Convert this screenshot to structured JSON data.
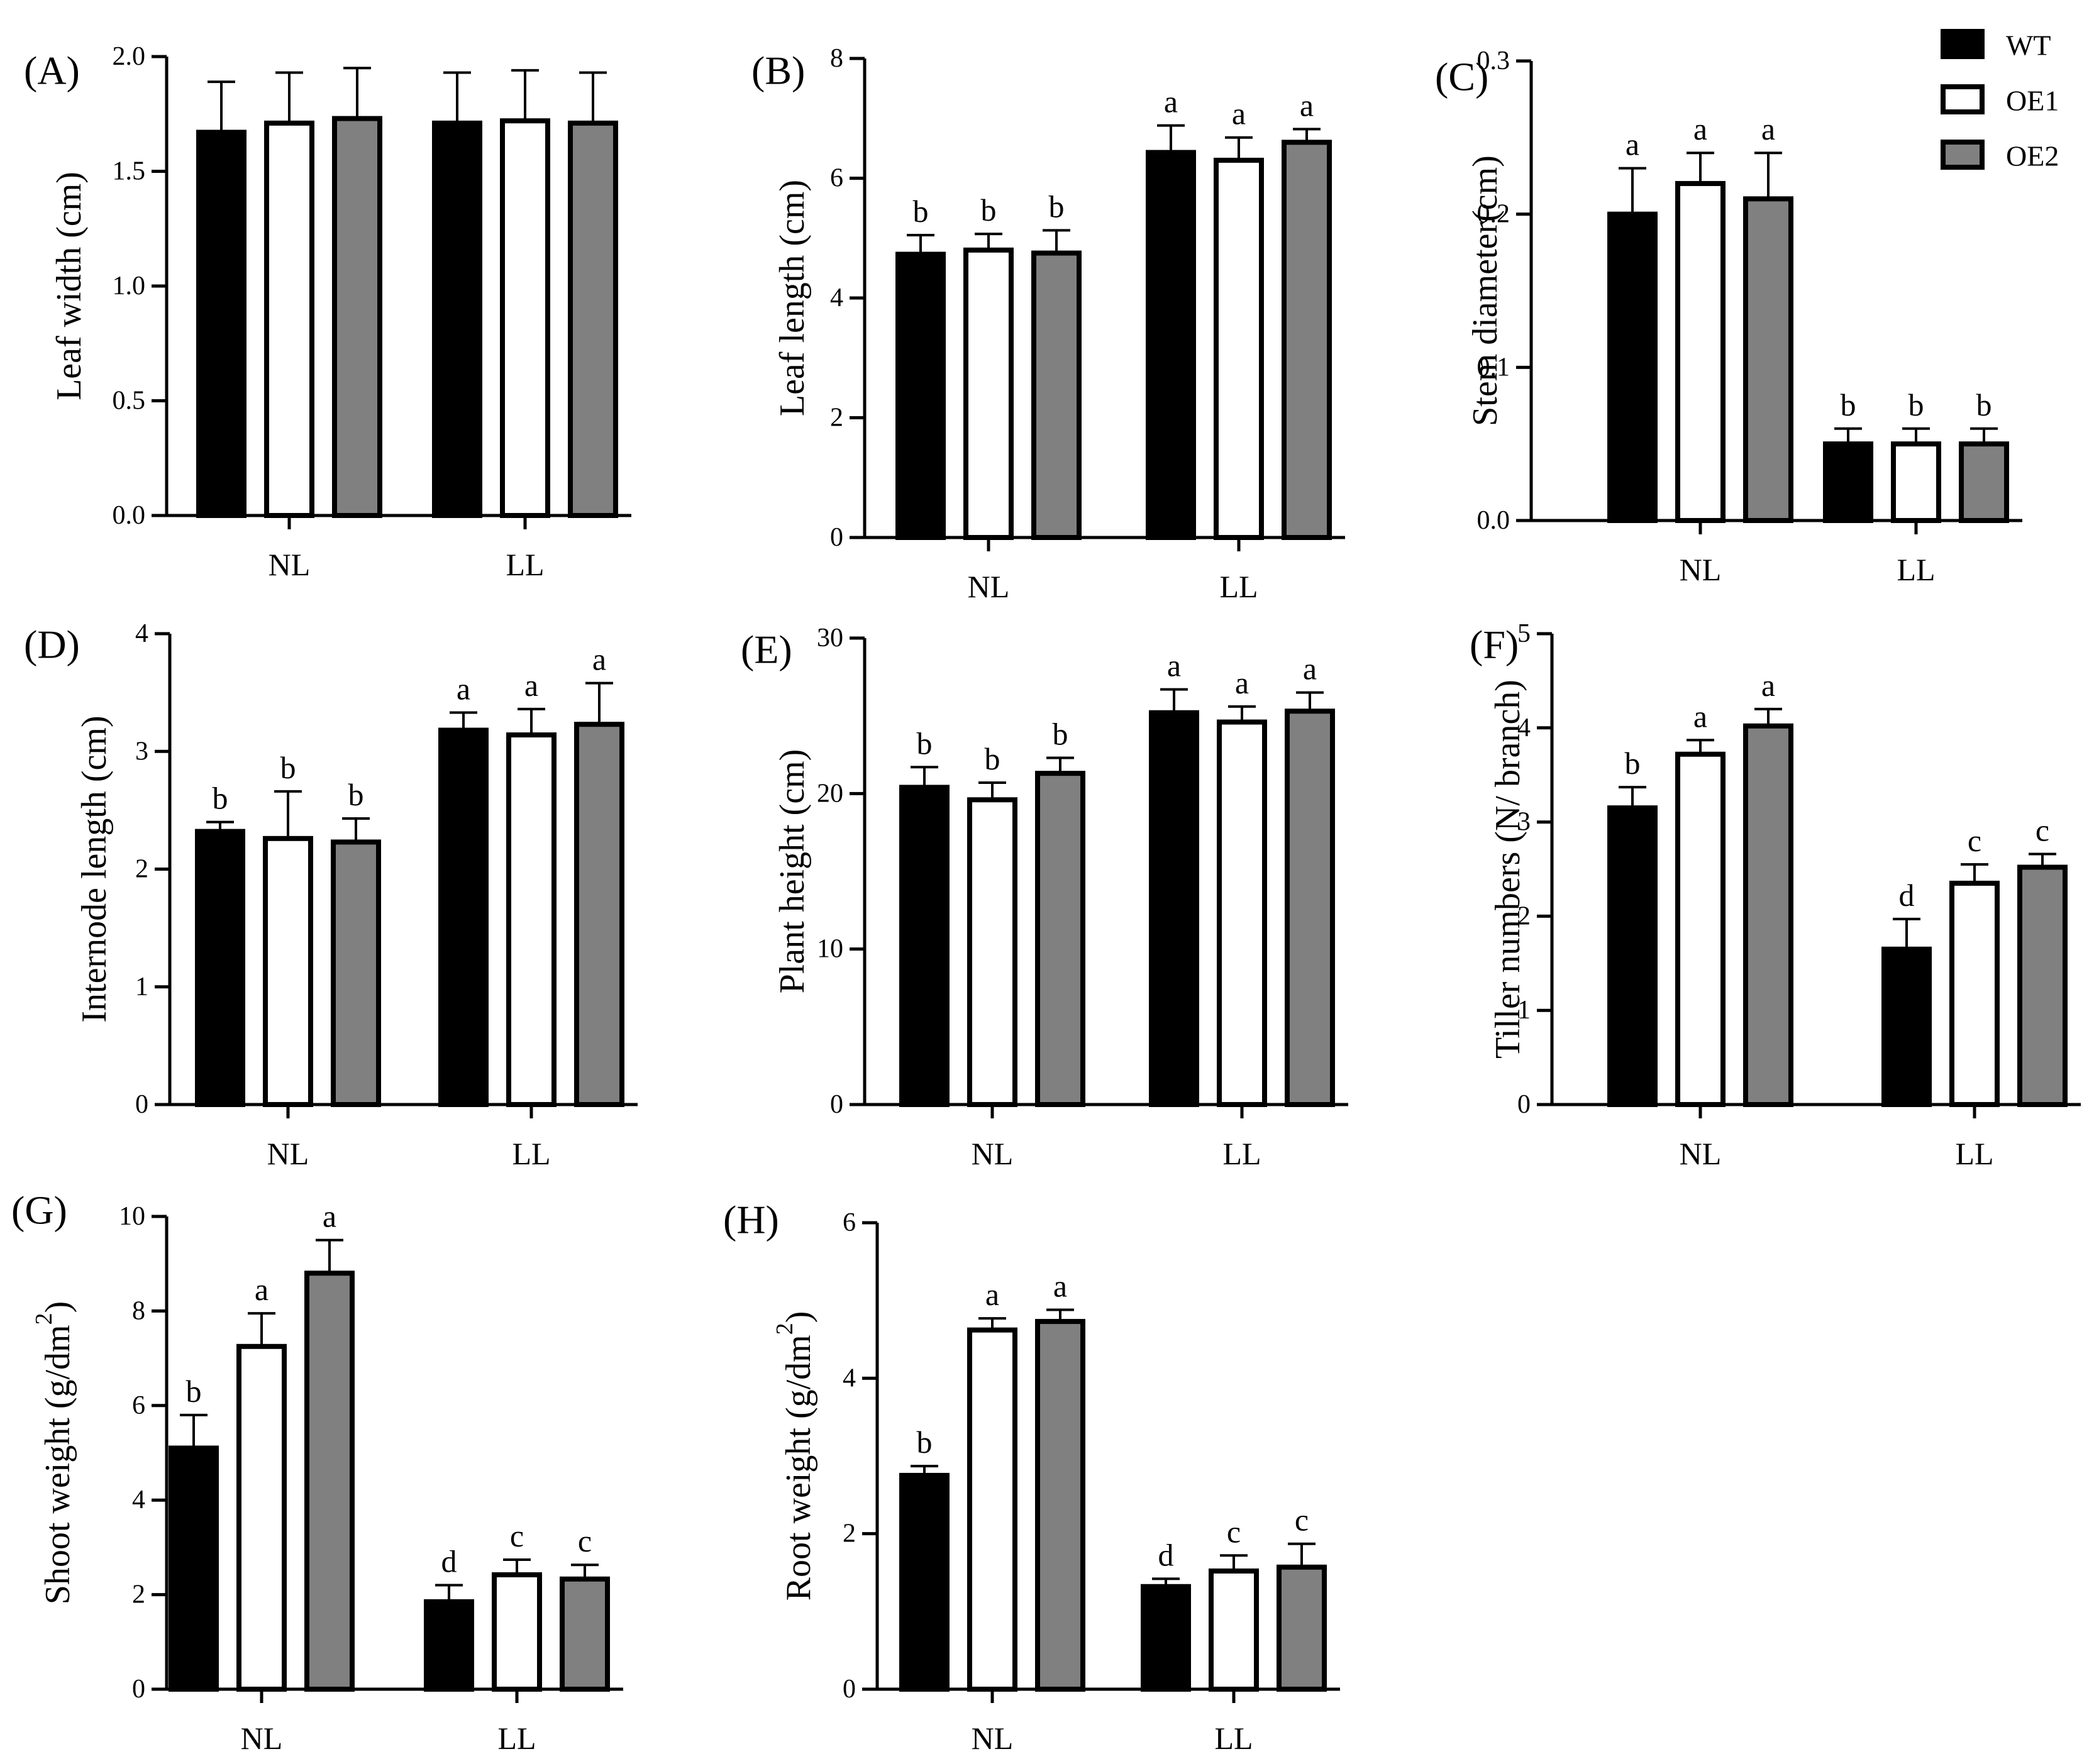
{
  "legend": [
    {
      "name": "WT",
      "fill": "#000000"
    },
    {
      "name": "OE1",
      "fill": "#ffffff"
    },
    {
      "name": "OE2",
      "fill": "#808080"
    }
  ],
  "chart_data": [
    {
      "label": "(A)",
      "type": "bar",
      "title": "",
      "ylabel": "Leaf width (cm)",
      "ylim": [
        0,
        2.0
      ],
      "yticks": [
        "0.0",
        "0.5",
        "1.0",
        "1.5",
        "2.0"
      ],
      "categories": [
        "NL",
        "LL"
      ],
      "series": [
        {
          "name": "WT",
          "values": [
            1.67,
            1.71
          ],
          "errors": [
            0.22,
            0.22
          ],
          "letters": [
            "",
            ""
          ]
        },
        {
          "name": "OE1",
          "values": [
            1.71,
            1.72
          ],
          "errors": [
            0.22,
            0.22
          ],
          "letters": [
            "",
            ""
          ]
        },
        {
          "name": "OE2",
          "values": [
            1.73,
            1.71
          ],
          "errors": [
            0.22,
            0.22
          ],
          "letters": [
            "",
            ""
          ]
        }
      ]
    },
    {
      "label": "(B)",
      "type": "bar",
      "title": "",
      "ylabel": "Leaf length (cm)",
      "ylim": [
        0,
        8
      ],
      "yticks": [
        "0",
        "2",
        "4",
        "6",
        "8"
      ],
      "categories": [
        "NL",
        "LL"
      ],
      "series": [
        {
          "name": "WT",
          "values": [
            4.73,
            6.43
          ],
          "errors": [
            0.32,
            0.45
          ],
          "letters": [
            "b",
            "a"
          ]
        },
        {
          "name": "OE1",
          "values": [
            4.8,
            6.3
          ],
          "errors": [
            0.27,
            0.38
          ],
          "letters": [
            "b",
            "a"
          ]
        },
        {
          "name": "OE2",
          "values": [
            4.75,
            6.6
          ],
          "errors": [
            0.38,
            0.22
          ],
          "letters": [
            "b",
            "a"
          ]
        }
      ]
    },
    {
      "label": "(C)",
      "type": "bar",
      "title": "",
      "ylabel": "Stem diameter(cm)",
      "ylim": [
        0,
        0.3
      ],
      "yticks": [
        "0.0",
        "0.1",
        "0.2",
        "0.3"
      ],
      "categories": [
        "NL",
        "LL"
      ],
      "series": [
        {
          "name": "WT",
          "values": [
            0.2,
            0.05
          ],
          "errors": [
            0.03,
            0.01
          ],
          "letters": [
            "a",
            "b"
          ]
        },
        {
          "name": "OE1",
          "values": [
            0.22,
            0.05
          ],
          "errors": [
            0.02,
            0.01
          ],
          "letters": [
            "a",
            "b"
          ]
        },
        {
          "name": "OE2",
          "values": [
            0.21,
            0.05
          ],
          "errors": [
            0.03,
            0.01
          ],
          "letters": [
            "a",
            "b"
          ]
        }
      ]
    },
    {
      "label": "(D)",
      "type": "bar",
      "title": "",
      "ylabel": "Internode length (cm)",
      "ylim": [
        0,
        4
      ],
      "yticks": [
        "0",
        "1",
        "2",
        "3",
        "4"
      ],
      "categories": [
        "NL",
        "LL"
      ],
      "series": [
        {
          "name": "WT",
          "values": [
            2.32,
            3.18
          ],
          "errors": [
            0.08,
            0.15
          ],
          "letters": [
            "b",
            "a"
          ]
        },
        {
          "name": "OE1",
          "values": [
            2.26,
            3.14
          ],
          "errors": [
            0.4,
            0.22
          ],
          "letters": [
            "b",
            "a"
          ]
        },
        {
          "name": "OE2",
          "values": [
            2.23,
            3.23
          ],
          "errors": [
            0.2,
            0.35
          ],
          "letters": [
            "b",
            "a"
          ]
        }
      ]
    },
    {
      "label": "(E)",
      "type": "bar",
      "title": "",
      "ylabel": "Plant height (cm)",
      "ylim": [
        0,
        30
      ],
      "yticks": [
        "0",
        "10",
        "20",
        "30"
      ],
      "categories": [
        "NL",
        "LL"
      ],
      "series": [
        {
          "name": "WT",
          "values": [
            20.4,
            25.2
          ],
          "errors": [
            1.3,
            1.5
          ],
          "letters": [
            "b",
            "a"
          ]
        },
        {
          "name": "OE1",
          "values": [
            19.6,
            24.6
          ],
          "errors": [
            1.1,
            1.0
          ],
          "letters": [
            "b",
            "a"
          ]
        },
        {
          "name": "OE2",
          "values": [
            21.3,
            25.3
          ],
          "errors": [
            1.0,
            1.2
          ],
          "letters": [
            "b",
            "a"
          ]
        }
      ]
    },
    {
      "label": "(F)",
      "type": "bar",
      "title": "",
      "ylabel": "Tiller numbers (N/ branch)",
      "ylim": [
        0,
        5
      ],
      "yticks": [
        "0",
        "1",
        "2",
        "3",
        "4",
        "5"
      ],
      "categories": [
        "NL",
        "LL"
      ],
      "series": [
        {
          "name": "WT",
          "values": [
            3.15,
            1.65
          ],
          "errors": [
            0.22,
            0.32
          ],
          "letters": [
            "b",
            "d"
          ]
        },
        {
          "name": "OE1",
          "values": [
            3.72,
            2.35
          ],
          "errors": [
            0.15,
            0.2
          ],
          "letters": [
            "a",
            "c"
          ]
        },
        {
          "name": "OE2",
          "values": [
            4.02,
            2.52
          ],
          "errors": [
            0.18,
            0.14
          ],
          "letters": [
            "a",
            "c"
          ]
        }
      ]
    },
    {
      "label": "(G)",
      "type": "bar",
      "title": "",
      "ylabel": "Shoot weight (g/dm",
      "ylabel_sup": "2",
      "ylabel_end": ")",
      "ylim": [
        0,
        10
      ],
      "yticks": [
        "0",
        "2",
        "4",
        "6",
        "8",
        "10"
      ],
      "categories": [
        "NL",
        "LL"
      ],
      "series": [
        {
          "name": "WT",
          "values": [
            5.1,
            1.85
          ],
          "errors": [
            0.7,
            0.35
          ],
          "letters": [
            "b",
            "d"
          ]
        },
        {
          "name": "OE1",
          "values": [
            7.25,
            2.42
          ],
          "errors": [
            0.7,
            0.32
          ],
          "letters": [
            "a",
            "c"
          ]
        },
        {
          "name": "OE2",
          "values": [
            8.8,
            2.33
          ],
          "errors": [
            0.7,
            0.3
          ],
          "letters": [
            "a",
            "c"
          ]
        }
      ]
    },
    {
      "label": "(H)",
      "type": "bar",
      "title": "",
      "ylabel": "Root weight (g/dm",
      "ylabel_sup": "2",
      "ylabel_end": ")",
      "ylim": [
        0,
        6
      ],
      "yticks": [
        "0",
        "2",
        "4",
        "6"
      ],
      "categories": [
        "NL",
        "LL"
      ],
      "series": [
        {
          "name": "WT",
          "values": [
            2.75,
            1.32
          ],
          "errors": [
            0.12,
            0.1
          ],
          "letters": [
            "b",
            "d"
          ]
        },
        {
          "name": "OE1",
          "values": [
            4.62,
            1.52
          ],
          "errors": [
            0.15,
            0.2
          ],
          "letters": [
            "a",
            "c"
          ]
        },
        {
          "name": "OE2",
          "values": [
            4.73,
            1.57
          ],
          "errors": [
            0.15,
            0.3
          ],
          "letters": [
            "a",
            "c"
          ]
        }
      ]
    }
  ]
}
